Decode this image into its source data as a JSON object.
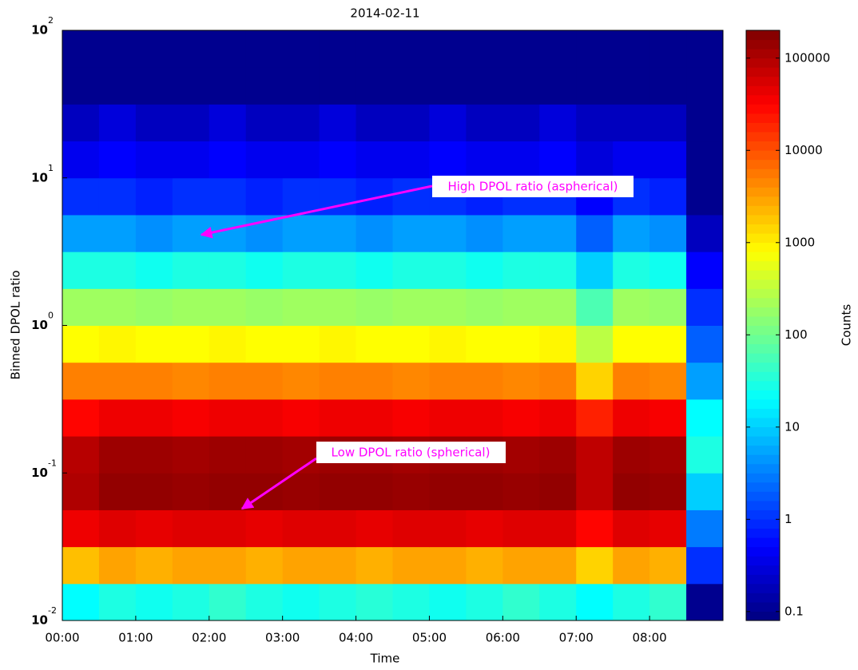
{
  "chart_data": {
    "type": "heatmap",
    "title": "2014-02-11",
    "xlabel": "Time",
    "ylabel": "Binned DPOL ratio",
    "colorbar_label": "Counts",
    "yscale": "log",
    "colorscale": "log",
    "colormap": "jet",
    "xlim": [
      0,
      9
    ],
    "ylim": [
      0.01,
      100
    ],
    "clim": [
      0.08,
      200000
    ],
    "xticks": [
      {
        "value": 0,
        "label": "00:00"
      },
      {
        "value": 1,
        "label": "01:00"
      },
      {
        "value": 2,
        "label": "02:00"
      },
      {
        "value": 3,
        "label": "03:00"
      },
      {
        "value": 4,
        "label": "04:00"
      },
      {
        "value": 5,
        "label": "05:00"
      },
      {
        "value": 6,
        "label": "06:00"
      },
      {
        "value": 7,
        "label": "07:00"
      },
      {
        "value": 8,
        "label": "08:00"
      }
    ],
    "yticks": [
      {
        "value": 0.01,
        "label": "10",
        "exponent": "-2"
      },
      {
        "value": 0.1,
        "label": "10",
        "exponent": "-1"
      },
      {
        "value": 1,
        "label": "10",
        "exponent": "0"
      },
      {
        "value": 10,
        "label": "10",
        "exponent": "1"
      },
      {
        "value": 100,
        "label": "10",
        "exponent": "2"
      }
    ],
    "cticks": [
      0.1,
      1,
      10,
      100,
      1000,
      10000,
      100000
    ],
    "x_edges": [
      0,
      0.5,
      1,
      1.5,
      2,
      2.5,
      3,
      3.5,
      4,
      4.5,
      5,
      5.5,
      6,
      6.5,
      7,
      7.5,
      8,
      8.5,
      9
    ],
    "y_edges": [
      0.01,
      0.01778,
      0.03162,
      0.05623,
      0.1,
      0.1778,
      0.3162,
      0.5623,
      1,
      1.778,
      3.162,
      5.623,
      10,
      17.78,
      31.62,
      56.23,
      100
    ],
    "z": [
      [
        20,
        30,
        25,
        30,
        40,
        30,
        25,
        30,
        35,
        30,
        25,
        30,
        40,
        30,
        20,
        30,
        40,
        0.1
      ],
      [
        2000,
        3000,
        2500,
        3000,
        3000,
        2500,
        3000,
        3000,
        2500,
        3000,
        3000,
        2500,
        3000,
        3000,
        1500,
        3000,
        2500,
        1
      ],
      [
        40000,
        50000,
        45000,
        50000,
        50000,
        45000,
        50000,
        50000,
        45000,
        50000,
        50000,
        45000,
        50000,
        50000,
        30000,
        50000,
        45000,
        3
      ],
      [
        100000,
        150000,
        150000,
        140000,
        150000,
        150000,
        140000,
        150000,
        150000,
        140000,
        150000,
        150000,
        140000,
        150000,
        80000,
        150000,
        140000,
        10
      ],
      [
        90000,
        130000,
        130000,
        120000,
        130000,
        130000,
        120000,
        130000,
        130000,
        120000,
        130000,
        130000,
        120000,
        130000,
        80000,
        130000,
        120000,
        30
      ],
      [
        30000,
        40000,
        40000,
        35000,
        40000,
        40000,
        35000,
        40000,
        40000,
        35000,
        40000,
        40000,
        35000,
        40000,
        20000,
        40000,
        35000,
        20
      ],
      [
        5000,
        5000,
        5000,
        4500,
        5000,
        5000,
        4500,
        5000,
        5000,
        4500,
        5000,
        5000,
        4500,
        5000,
        1500,
        5000,
        4500,
        5
      ],
      [
        800,
        900,
        800,
        800,
        900,
        800,
        800,
        900,
        800,
        800,
        900,
        800,
        800,
        900,
        300,
        800,
        800,
        2
      ],
      [
        200,
        200,
        180,
        200,
        200,
        180,
        200,
        200,
        180,
        200,
        200,
        180,
        200,
        200,
        60,
        200,
        180,
        1
      ],
      [
        30,
        30,
        25,
        30,
        30,
        25,
        30,
        30,
        25,
        30,
        30,
        25,
        30,
        30,
        10,
        30,
        25,
        0.5
      ],
      [
        5,
        5,
        4,
        5,
        5,
        4,
        5,
        5,
        4,
        5,
        5,
        4,
        5,
        5,
        2,
        5,
        4,
        0.2
      ],
      [
        1,
        1,
        0.8,
        1,
        1,
        0.8,
        1,
        1,
        0.8,
        1,
        1,
        0.8,
        1,
        1,
        0.5,
        1,
        0.8,
        0.1
      ],
      [
        0.4,
        0.5,
        0.4,
        0.4,
        0.5,
        0.4,
        0.4,
        0.5,
        0.4,
        0.4,
        0.5,
        0.4,
        0.4,
        0.5,
        0.3,
        0.4,
        0.4,
        0.1
      ],
      [
        0.2,
        0.3,
        0.2,
        0.2,
        0.3,
        0.2,
        0.2,
        0.3,
        0.2,
        0.2,
        0.3,
        0.2,
        0.2,
        0.3,
        0.2,
        0.2,
        0.2,
        0.1
      ],
      [
        0.1,
        0.1,
        0.1,
        0.1,
        0.1,
        0.1,
        0.1,
        0.1,
        0.1,
        0.1,
        0.1,
        0.1,
        0.1,
        0.1,
        0.1,
        0.1,
        0.1,
        0.1
      ],
      [
        0.1,
        0.1,
        0.1,
        0.1,
        0.1,
        0.1,
        0.1,
        0.1,
        0.1,
        0.1,
        0.1,
        0.1,
        0.1,
        0.1,
        0.1,
        0.1,
        0.1,
        0.1
      ]
    ],
    "annotations": [
      {
        "text": "High DPOL ratio (aspherical)",
        "color": "#ff00ff"
      },
      {
        "text": "Low DPOL ratio (spherical)",
        "color": "#ff00ff"
      }
    ]
  }
}
